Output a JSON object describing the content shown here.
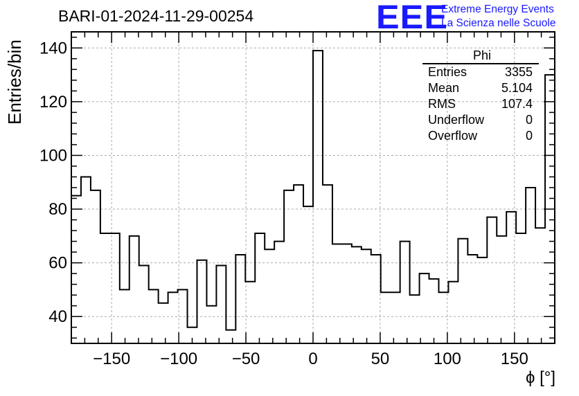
{
  "run_title": "BARI-01-2024-11-29-00254",
  "logo": {
    "mark": "EEE",
    "line1": "Extreme Energy Events",
    "line2": "La Scienza nelle Scuole",
    "color": "#1a1aff"
  },
  "stats": {
    "title": "Phi",
    "rows": [
      {
        "label": "Entries",
        "value": "3355"
      },
      {
        "label": "Mean",
        "value": "5.104"
      },
      {
        "label": "RMS",
        "value": "107.4"
      },
      {
        "label": "Underflow",
        "value": "0"
      },
      {
        "label": "Overflow",
        "value": "0"
      }
    ]
  },
  "chart_data": {
    "type": "bar",
    "style": "step-histogram",
    "title": "BARI-01-2024-11-29-00254",
    "xlabel": "ϕ [°]",
    "ylabel": "Entries/bin",
    "xlim": [
      -180,
      180
    ],
    "ylim": [
      30,
      146
    ],
    "bin_width": 7.2,
    "grid": true,
    "x_ticks": [
      -150,
      -100,
      -50,
      0,
      50,
      100,
      150
    ],
    "x_tick_labels": [
      "−150",
      "−100",
      "−50",
      "0",
      "50",
      "100",
      "150"
    ],
    "y_ticks": [
      40,
      60,
      80,
      100,
      120,
      140
    ],
    "y_tick_labels": [
      "40",
      "60",
      "80",
      "100",
      "120",
      "140"
    ],
    "values": [
      85,
      92,
      87,
      71,
      71,
      50,
      70,
      59,
      50,
      45,
      49,
      50,
      36,
      61,
      44,
      59,
      35,
      63,
      53,
      71,
      65,
      68,
      87,
      89,
      81,
      139,
      89,
      67,
      67,
      66,
      65,
      63,
      49,
      49,
      68,
      48,
      56,
      54,
      49,
      53,
      69,
      63,
      62,
      77,
      70,
      79,
      71,
      88,
      73,
      130
    ]
  }
}
